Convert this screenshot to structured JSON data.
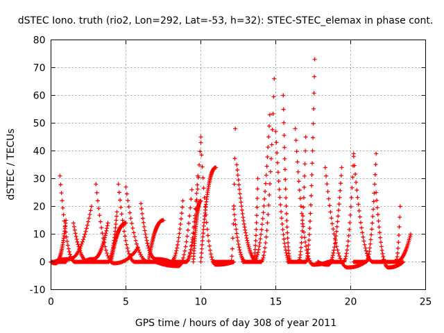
{
  "chart_data": {
    "type": "scatter",
    "title": "dSTEC Iono. truth (rio2, Lon=292, Lat=-53, h=32): STEC-STEC_elemax in phase cont.",
    "xlabel": "GPS time / hours of day 308 of year 2011",
    "ylabel": "dSTEC  / TECUs",
    "xlim": [
      0,
      25
    ],
    "ylim": [
      -10,
      80
    ],
    "x_ticks": [
      0,
      5,
      10,
      15,
      20,
      25
    ],
    "y_ticks": [
      -10,
      0,
      10,
      20,
      30,
      40,
      50,
      60,
      70,
      80
    ],
    "grid": true,
    "marker": "+",
    "color": "#ff0000",
    "series": [
      {
        "peak_time": 0.0,
        "peak": 0,
        "start": 10.5,
        "start_time": -0.05,
        "end": 0,
        "end_time": 1.0
      },
      {
        "peak_time": 0.3,
        "peak": -0.5,
        "start": 0,
        "start_time": 0.0,
        "end": 15,
        "end_time": 1.0
      },
      {
        "peak_time": 1.6,
        "peak": 0,
        "start": 31,
        "start_time": 0.6,
        "end": 0,
        "end_time": 2.8
      },
      {
        "peak_time": 1.2,
        "peak": 1,
        "start": 0,
        "start_time": 0.2,
        "end": 20,
        "end_time": 2.7
      },
      {
        "peak_time": 2.5,
        "peak": 0,
        "start": 14,
        "start_time": 1.5,
        "end": 0,
        "end_time": 3.5
      },
      {
        "peak_time": 4.2,
        "peak": -0.5,
        "start": 28,
        "start_time": 3.0,
        "end": 5,
        "end_time": 5.8
      },
      {
        "peak_time": 2.8,
        "peak": 1,
        "start": 0,
        "start_time": 2.2,
        "end": 14,
        "end_time": 3.8
      },
      {
        "peak_time": 3.8,
        "peak": 0,
        "start": 0,
        "start_time": 3.3,
        "end": 18,
        "end_time": 4.4
      },
      {
        "peak_time": 5.6,
        "peak": 0,
        "start": 28,
        "start_time": 4.5,
        "end": 0,
        "end_time": 7.0
      },
      {
        "peak_time": 5.0,
        "peak": 0,
        "start": 0,
        "start_time": 4.0,
        "end": 14,
        "end_time": 5.0
      },
      {
        "peak_time": 6.5,
        "peak": 0,
        "start": 27,
        "start_time": 5.0,
        "end": 0,
        "end_time": 8.0
      },
      {
        "peak_time": 7.0,
        "peak": 1,
        "start": 21,
        "start_time": 6.0,
        "end": 0,
        "end_time": 8.0
      },
      {
        "peak_time": 7.5,
        "peak": 0,
        "start": 0,
        "start_time": 6.5,
        "end": 15,
        "end_time": 7.5
      },
      {
        "peak_time": 8.5,
        "peak": -1.5,
        "start": 0,
        "start_time": 7.0,
        "end": 26,
        "end_time": 9.4
      },
      {
        "peak_time": 8.0,
        "peak": 0,
        "start": 0,
        "start_time": 7.0,
        "end": 22,
        "end_time": 8.8
      },
      {
        "peak_time": 9.0,
        "peak": 0,
        "start": 0,
        "start_time": 7.5,
        "end": 45,
        "end_time": 10.0
      },
      {
        "peak_time": 9.0,
        "peak": 0,
        "start": 0,
        "start_time": 8.0,
        "end": 31,
        "end_time": 9.8
      },
      {
        "peak_time": 11.0,
        "peak": -1,
        "start": 43,
        "start_time": 10.0,
        "end": 0,
        "end_time": 12.2
      },
      {
        "peak_time": 10.5,
        "peak": 0,
        "start": 0,
        "start_time": 9.5,
        "end": 22,
        "end_time": 10.0
      },
      {
        "peak_time": 11.5,
        "peak": 0,
        "start": 0,
        "start_time": 10.0,
        "end": 34,
        "end_time": 11.0
      },
      {
        "peak_time": 12.0,
        "peak": 0,
        "start": 0,
        "start_time": 10.8,
        "end": 48,
        "end_time": 12.3
      },
      {
        "peak_time": 13.8,
        "peak": 0,
        "start": 35,
        "start_time": 12.4,
        "end": 0,
        "end_time": 14.0
      },
      {
        "peak_time": 13.0,
        "peak": 0,
        "start": 19,
        "start_time": 12.2,
        "end": 0,
        "end_time": 14.0
      },
      {
        "peak_time": 13.5,
        "peak": 0,
        "start": 0,
        "start_time": 13.0,
        "end": 30,
        "end_time": 13.8
      },
      {
        "peak_time": 13.5,
        "peak": 0,
        "start": 0,
        "start_time": 12.8,
        "end": 53,
        "end_time": 14.6
      },
      {
        "peak_time": 14.0,
        "peak": 0,
        "start": 0,
        "start_time": 13.0,
        "end": 66,
        "end_time": 14.9
      },
      {
        "peak_time": 16.0,
        "peak": 0,
        "start": 60,
        "start_time": 15.5,
        "end": 0,
        "end_time": 16.4
      },
      {
        "peak_time": 16.0,
        "peak": 0,
        "start": 47,
        "start_time": 15.0,
        "end": 0,
        "end_time": 16.8
      },
      {
        "peak_time": 17.5,
        "peak": -1,
        "start": 48,
        "start_time": 16.3,
        "end": 0,
        "end_time": 18.5
      },
      {
        "peak_time": 16.5,
        "peak": 0,
        "start": 0,
        "start_time": 15.8,
        "end": 45,
        "end_time": 17.0
      },
      {
        "peak_time": 17.0,
        "peak": 0,
        "start": 0,
        "start_time": 16.5,
        "end": 73,
        "end_time": 17.6
      },
      {
        "peak_time": 18.5,
        "peak": -1,
        "start": 0,
        "start_time": 17.8,
        "end": 34,
        "end_time": 19.4
      },
      {
        "peak_time": 19.5,
        "peak": 0,
        "start": 0,
        "start_time": 18.5,
        "end": 39,
        "end_time": 20.2
      },
      {
        "peak_time": 19.8,
        "peak": -2,
        "start": 34,
        "start_time": 18.3,
        "end": 0,
        "end_time": 21.0
      },
      {
        "peak_time": 21.5,
        "peak": 0,
        "start": 38,
        "start_time": 20.2,
        "end": 0,
        "end_time": 22.6
      },
      {
        "peak_time": 21.0,
        "peak": 0,
        "start": 0,
        "start_time": 20.2,
        "end": 39,
        "end_time": 21.7
      },
      {
        "peak_time": 22.5,
        "peak": -2,
        "start": 25,
        "start_time": 21.7,
        "end": 0,
        "end_time": 23.5
      },
      {
        "peak_time": 23.0,
        "peak": 0,
        "start": 0,
        "start_time": 22.0,
        "end": 20,
        "end_time": 23.3
      },
      {
        "peak_time": 23.0,
        "peak": 0,
        "start": 0,
        "start_time": 22.5,
        "end": 10,
        "end_time": 24.0
      }
    ]
  }
}
